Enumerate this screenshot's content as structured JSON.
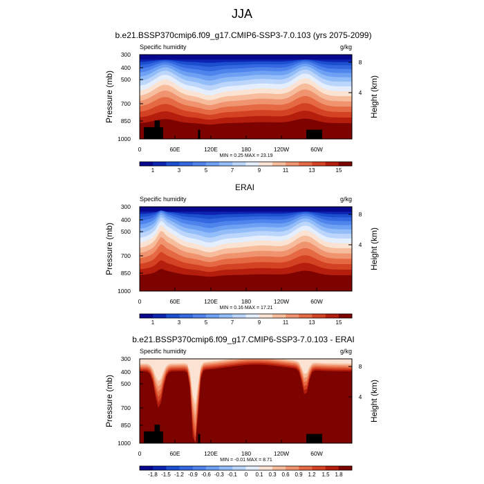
{
  "figure_title": "JJA",
  "chart_data": [
    {
      "type": "heatmap",
      "title": "b.e21.BSSP370cmip6.f09_g17.CMIP6-SSP3-7.0.103 (yrs 2075-2099)",
      "variable_label": "Specific humidity",
      "units_label": "g/kg",
      "xlabel": "",
      "ylabel": "Pressure (mb)",
      "ylabel_right": "Height (km)",
      "x_ticks": [
        "0",
        "60E",
        "120E",
        "180",
        "120W",
        "60W"
      ],
      "y_ticks": [
        "300",
        "400",
        "500",
        "700",
        "850",
        "1000"
      ],
      "y_right_ticks": [
        "8",
        "4"
      ],
      "minmax_text": "MIN =   0.25  MAX =  23.19",
      "colorbar_ticks": [
        "1",
        "3",
        "5",
        "7",
        "9",
        "11",
        "13",
        "15"
      ],
      "colorbar_levels": 16,
      "min": 0.25,
      "max": 23.19,
      "ylim": [
        1000,
        300
      ],
      "xlim": [
        0,
        360
      ]
    },
    {
      "type": "heatmap",
      "title": "ERAI",
      "variable_label": "Specific humidity",
      "units_label": "g/kg",
      "xlabel": "",
      "ylabel": "Pressure (mb)",
      "ylabel_right": "Height (km)",
      "x_ticks": [
        "0",
        "60E",
        "120E",
        "180",
        "120W",
        "60W"
      ],
      "y_ticks": [
        "300",
        "400",
        "500",
        "700",
        "850",
        "1000"
      ],
      "y_right_ticks": [
        "8",
        "4"
      ],
      "minmax_text": "MIN =   0.16  MAX =  17.21",
      "colorbar_ticks": [
        "1",
        "3",
        "5",
        "7",
        "9",
        "11",
        "13",
        "15"
      ],
      "colorbar_levels": 16,
      "min": 0.16,
      "max": 17.21,
      "ylim": [
        1000,
        300
      ],
      "xlim": [
        0,
        360
      ]
    },
    {
      "type": "heatmap",
      "title": "b.e21.BSSP370cmip6.f09_g17.CMIP6-SSP3-7.0.103 - ERAI",
      "variable_label": "Specific humidity",
      "units_label": "g/kg",
      "xlabel": "",
      "ylabel": "Pressure (mb)",
      "ylabel_right": "Height (km)",
      "x_ticks": [
        "0",
        "60E",
        "120E",
        "180",
        "120W",
        "60W"
      ],
      "y_ticks": [
        "300",
        "400",
        "500",
        "700",
        "850",
        "1000"
      ],
      "y_right_ticks": [
        "8",
        "4"
      ],
      "minmax_text": "MIN =  -0.01  MAX =   8.71",
      "colorbar_ticks": [
        "-1.8",
        "-1.5",
        "-1.2",
        "-0.9",
        "-0.6",
        "-0.3",
        "-0.1",
        "0",
        "0.1",
        "0.3",
        "0.6",
        "0.9",
        "1.2",
        "1.5",
        "1.8"
      ],
      "colorbar_levels": 16,
      "min": -0.01,
      "max": 8.71,
      "ylim": [
        1000,
        300
      ],
      "xlim": [
        0,
        360
      ]
    }
  ],
  "colors": {
    "palette": [
      "#08088e",
      "#0d24b3",
      "#1b4fd0",
      "#3468e0",
      "#4f84ec",
      "#6ea0f3",
      "#93bdf8",
      "#bcd6fb",
      "#e4eefc",
      "#fbe3d3",
      "#f6bc9c",
      "#f09470",
      "#e56a44",
      "#d44224",
      "#b51e0d",
      "#7d0300"
    ],
    "terrain": "#000000",
    "frame": "#000000"
  }
}
